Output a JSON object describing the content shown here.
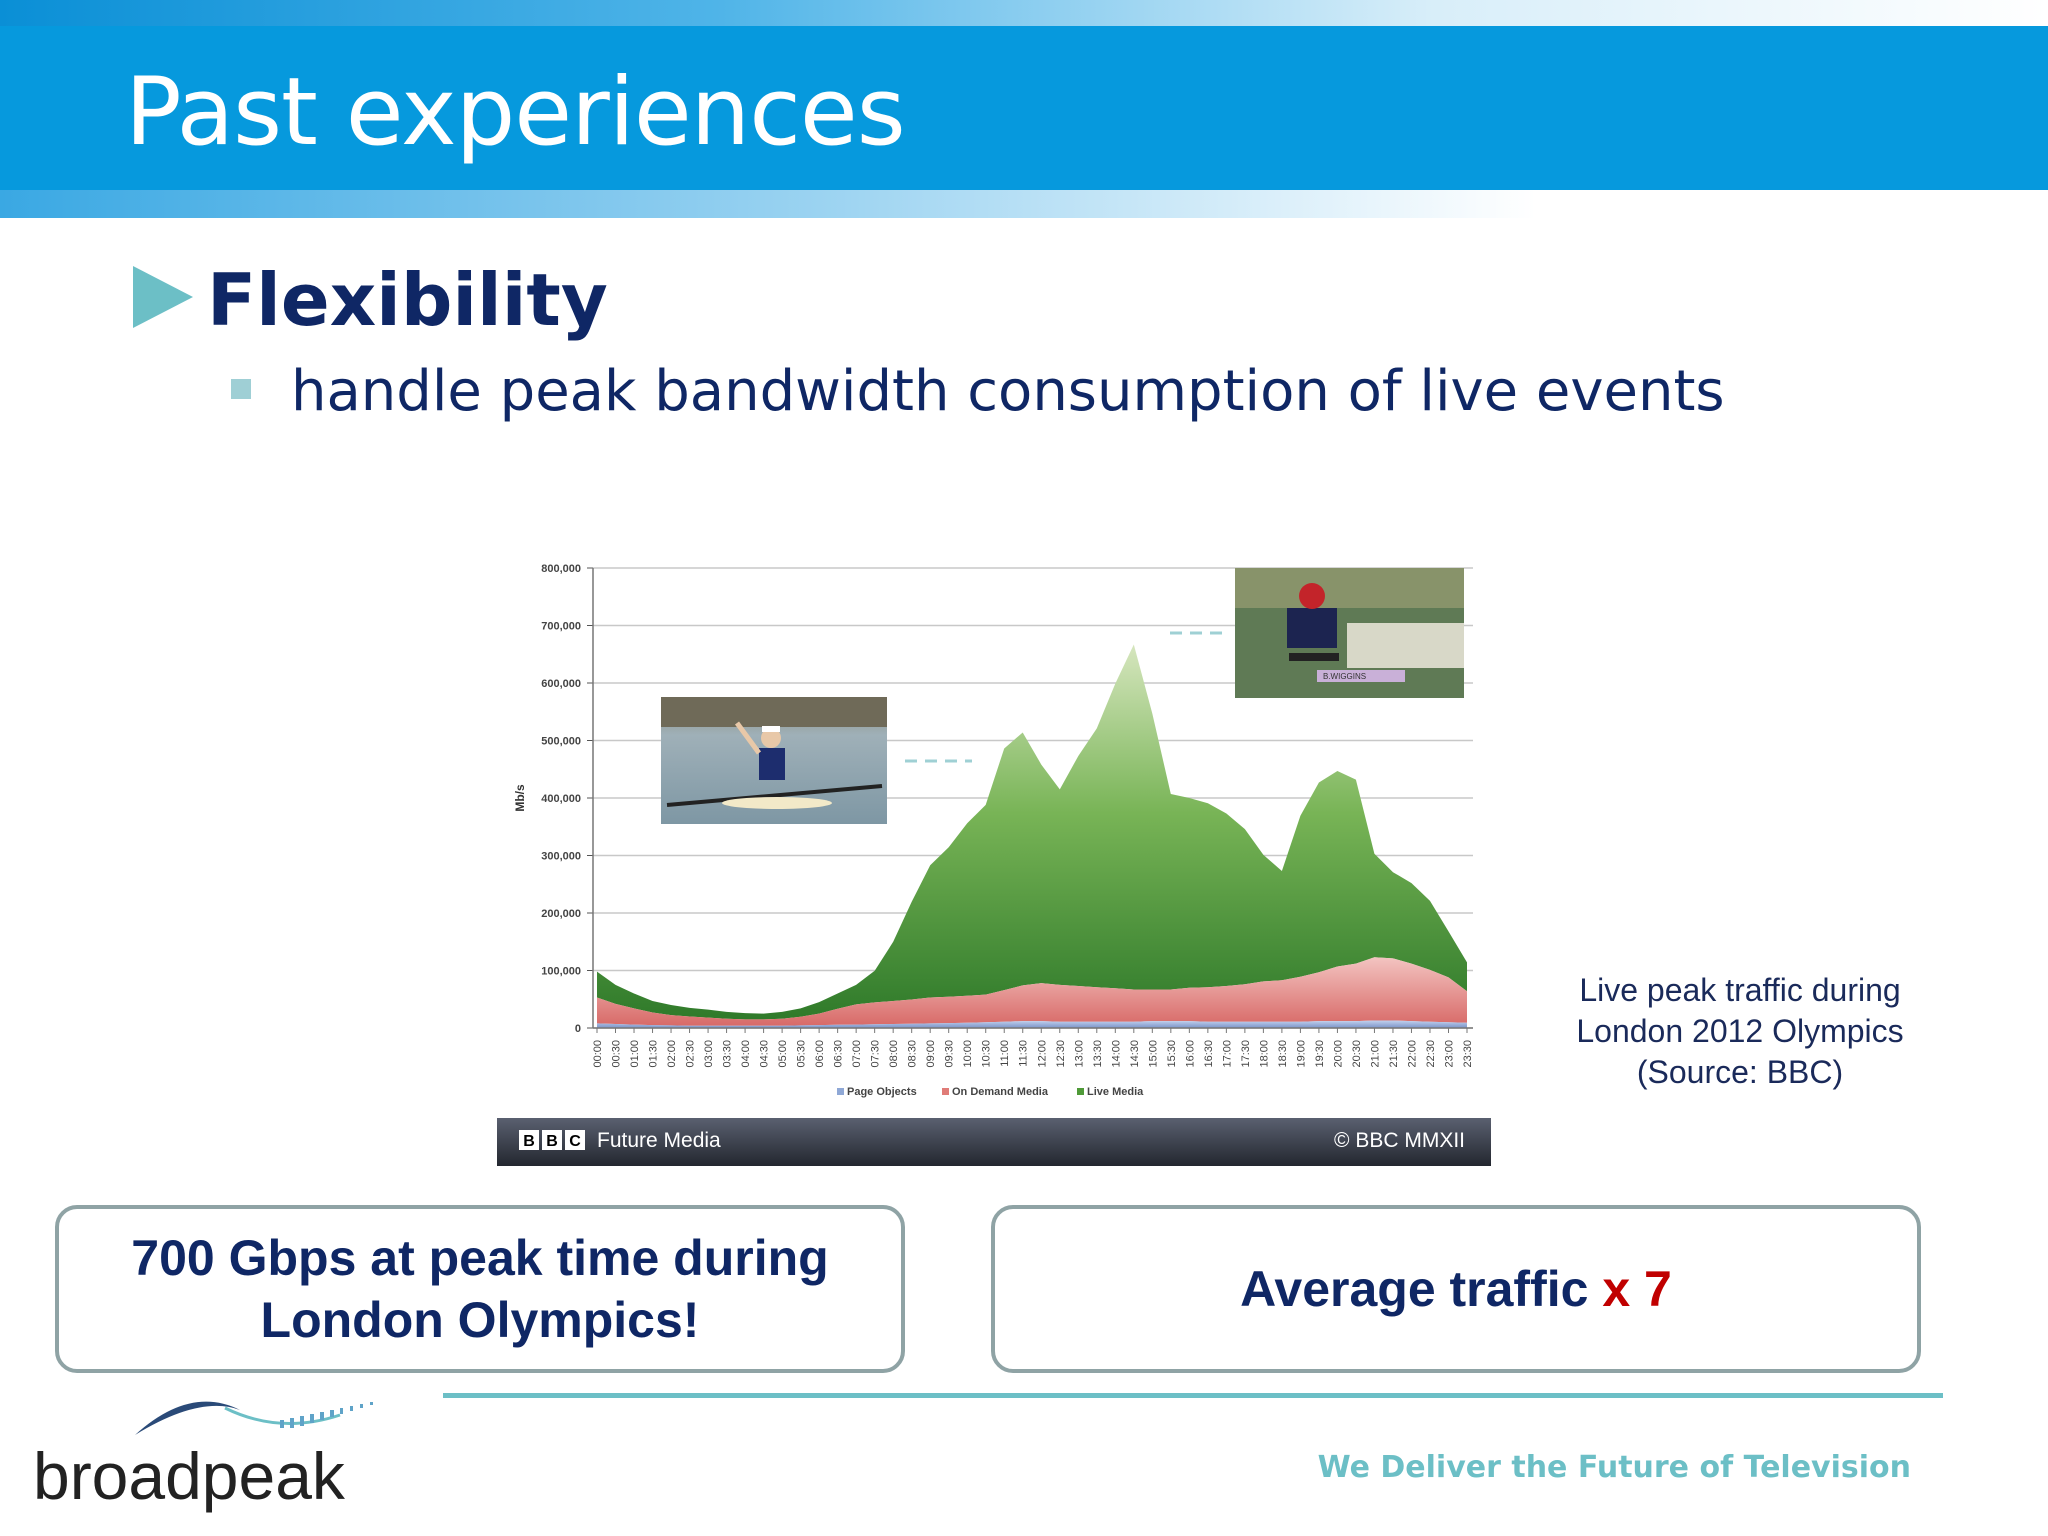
{
  "slide": {
    "title": "Past experiences",
    "heading": "Flexibility",
    "bullet": "handle peak bandwidth consumption of live events"
  },
  "caption": {
    "line1": "Live peak traffic during",
    "line2": "London 2012 Olympics",
    "line3": "(Source: BBC)"
  },
  "callouts": {
    "left_line1": "700 Gbps at peak time during",
    "left_line2": "London Olympics!",
    "right_text": "Average traffic",
    "right_accent": "x 7"
  },
  "footer": {
    "logo": "broadpeak",
    "tagline": "We Deliver the Future of Television"
  },
  "banner": {
    "left": "Future Media",
    "bbc_letters": [
      "B",
      "B",
      "C"
    ],
    "right": "© BBC MMXII"
  },
  "colors": {
    "title_bar": "#0699dd",
    "heading": "#0f2765",
    "accent_teal": "#6cbfc6",
    "callout_border": "#8fa3a5",
    "live_media": "#4f9a38",
    "on_demand": "#e07c78",
    "page_objects": "#8fa8d6",
    "accent_red": "#c00000"
  },
  "chart_data": {
    "type": "area",
    "ylabel": "Mb/s",
    "ylim": [
      0,
      800000
    ],
    "yticks": [
      0,
      100000,
      200000,
      300000,
      400000,
      500000,
      600000,
      700000,
      800000
    ],
    "ytick_labels": [
      "0",
      "100,000",
      "200,000",
      "300,000",
      "400,000",
      "500,000",
      "600,000",
      "700,000",
      "800,000"
    ],
    "x": [
      "00:00",
      "00:30",
      "01:00",
      "01:30",
      "02:00",
      "02:30",
      "03:00",
      "03:30",
      "04:00",
      "04:30",
      "05:00",
      "05:30",
      "06:00",
      "06:30",
      "07:00",
      "07:30",
      "08:00",
      "08:30",
      "09:00",
      "09:30",
      "10:00",
      "10:30",
      "11:00",
      "11:30",
      "12:00",
      "12:30",
      "13:00",
      "13:30",
      "14:00",
      "14:30",
      "15:00",
      "15:30",
      "16:00",
      "16:30",
      "17:00",
      "17:30",
      "18:00",
      "18:30",
      "19:00",
      "19:30",
      "20:00",
      "20:30",
      "21:00",
      "21:30",
      "22:00",
      "22:30",
      "23:00",
      "23:30"
    ],
    "stacked": true,
    "series": [
      {
        "name": "Page Objects",
        "values": [
          8000,
          7000,
          6000,
          5000,
          4500,
          4000,
          4000,
          4000,
          4000,
          4000,
          4000,
          4500,
          5000,
          5500,
          6000,
          6500,
          7000,
          7500,
          8000,
          8500,
          9000,
          10000,
          11000,
          12000,
          12000,
          11000,
          11000,
          11000,
          11000,
          11000,
          12000,
          12000,
          12000,
          11000,
          11000,
          11000,
          11000,
          11000,
          11000,
          12000,
          12000,
          12000,
          13000,
          13000,
          12000,
          11000,
          10000,
          9000
        ]
      },
      {
        "name": "On Demand Media",
        "values": [
          45000,
          35000,
          28000,
          22000,
          18000,
          16000,
          14000,
          12000,
          11000,
          11000,
          12000,
          15000,
          20000,
          28000,
          35000,
          38000,
          40000,
          42000,
          45000,
          46000,
          47000,
          48000,
          55000,
          62000,
          66000,
          64000,
          62000,
          60000,
          58000,
          56000,
          55000,
          55000,
          58000,
          60000,
          62000,
          65000,
          70000,
          72000,
          78000,
          85000,
          95000,
          100000,
          110000,
          108000,
          100000,
          90000,
          78000,
          55000
        ]
      },
      {
        "name": "Live Media",
        "values": [
          45000,
          33000,
          26000,
          20000,
          17500,
          15000,
          14000,
          12000,
          11000,
          10000,
          12000,
          14500,
          20000,
          26500,
          34000,
          55000,
          103000,
          170000,
          230000,
          260000,
          300000,
          330000,
          420000,
          440000,
          380000,
          340000,
          400000,
          450000,
          530000,
          600000,
          480000,
          340000,
          330000,
          320000,
          300000,
          270000,
          220000,
          190000,
          280000,
          330000,
          340000,
          320000,
          180000,
          150000,
          140000,
          120000,
          80000,
          50000
        ]
      }
    ],
    "legend": [
      "Page Objects",
      "On Demand Media",
      "Live Media"
    ],
    "legend_position": "bottom",
    "grid": true
  }
}
